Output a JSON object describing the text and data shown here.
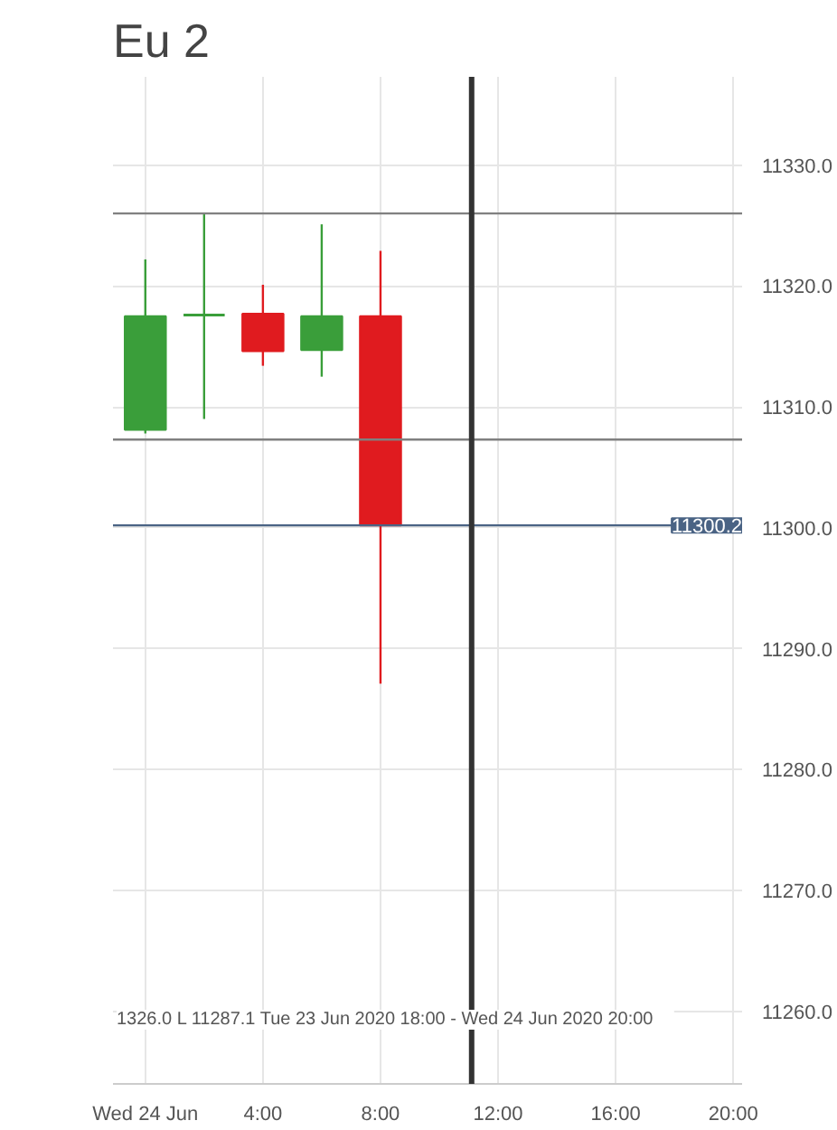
{
  "chart_data": {
    "type": "candlestick",
    "title": "Eu 2",
    "x": [
      0,
      2,
      4,
      6,
      8
    ],
    "ohlc": [
      [
        11308.1,
        11322.2,
        11307.8,
        11317.5
      ],
      [
        11317.6,
        11326.0,
        11309.0,
        11317.6
      ],
      [
        11317.7,
        11320.1,
        11313.4,
        11314.6
      ],
      [
        11314.7,
        11325.1,
        11312.5,
        11317.5
      ],
      [
        11317.5,
        11322.9,
        11287.1,
        11300.2
      ]
    ],
    "colors": [
      "#3a9e3a",
      "#3a9e3a",
      "#e01b1f",
      "#3a9e3a",
      "#e01b1f"
    ],
    "xlim": [
      -1.1,
      20.3
    ],
    "ylim": [
      11254,
      11337.3
    ],
    "xticks": [
      {
        "value": 0,
        "label": "Wed 24 Jun"
      },
      {
        "value": 4,
        "label": "4:00"
      },
      {
        "value": 8,
        "label": "8:00"
      },
      {
        "value": 12,
        "label": "12:00"
      },
      {
        "value": 16,
        "label": "16:00"
      },
      {
        "value": 20,
        "label": "20:00"
      }
    ],
    "yticks": [
      {
        "value": 11260,
        "label": "11260.0"
      },
      {
        "value": 11270,
        "label": "11270.0"
      },
      {
        "value": 11280,
        "label": "11280.0"
      },
      {
        "value": 11290,
        "label": "11290.0"
      },
      {
        "value": 11300,
        "label": "11300.0"
      },
      {
        "value": 11310,
        "label": "11310.0"
      },
      {
        "value": 11320,
        "label": "11320.0"
      },
      {
        "value": 11330,
        "label": "11330.0"
      }
    ],
    "grid": true,
    "ref_lines": [
      {
        "axis": "y",
        "value": 11326.0,
        "color": "#808080"
      },
      {
        "axis": "y",
        "value": 11307.3,
        "color": "#808080"
      },
      {
        "axis": "y",
        "value": 11300.2,
        "label": "11300.2",
        "color": "#4a6384"
      },
      {
        "axis": "x",
        "value": 11.1,
        "color": "#333333"
      }
    ],
    "annotations": [
      "1326.0   L 11287.1   Tue 23 Jun 2020 18:00 - Wed 24 Jun 2020 20:00"
    ]
  }
}
